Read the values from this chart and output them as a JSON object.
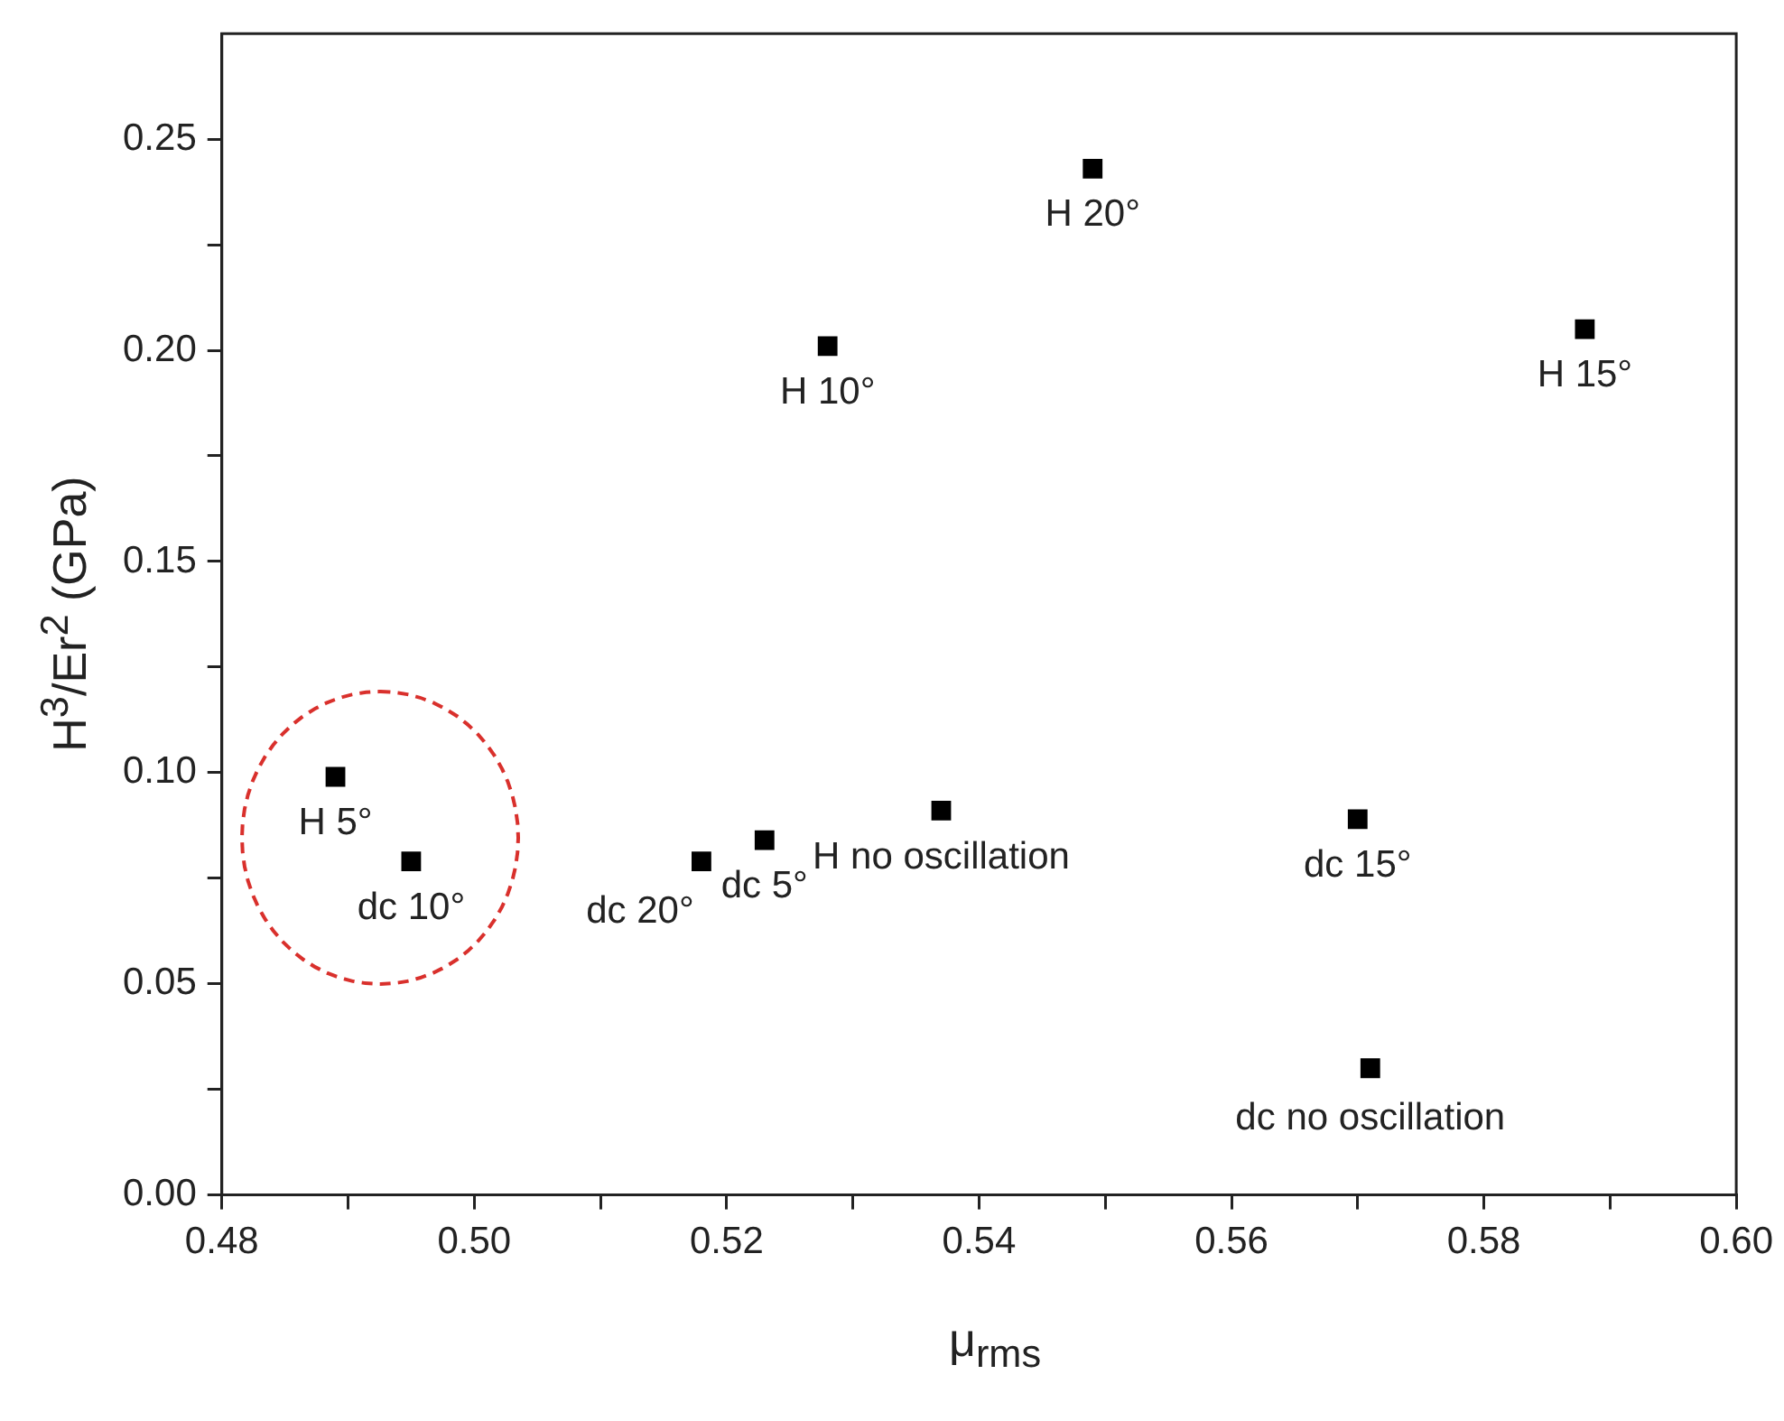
{
  "chart_data": {
    "type": "scatter",
    "xlabel": "μ$_{rms}$",
    "ylabel": "H$^{3}$/Er$^{2}$ (GPa)",
    "x": [
      0.489,
      0.495,
      0.518,
      0.523,
      0.537,
      0.57,
      0.571,
      0.528,
      0.549,
      0.588
    ],
    "series": [
      {
        "color": "#000000",
        "values": [
          0.099,
          0.079,
          0.079,
          0.084,
          0.091,
          0.089,
          0.03,
          0.201,
          0.243,
          0.205
        ]
      }
    ],
    "marker": "square",
    "grid": false,
    "legend": false,
    "xlim": [
      0.48,
      0.6
    ],
    "ylim": [
      0,
      0.275
    ],
    "xticks": [
      0.48,
      {
        "value": 0.49,
        "label": null
      },
      {
        "value": 0.5,
        "label": "0.50"
      },
      {
        "value": 0.51,
        "label": null
      },
      0.52,
      {
        "value": 0.53,
        "label": null
      },
      0.54,
      {
        "value": 0.55,
        "label": null
      },
      0.56,
      {
        "value": 0.57,
        "label": null
      },
      0.58,
      {
        "value": 0.59,
        "label": null
      },
      {
        "value": 0.6,
        "label": "0.60"
      }
    ],
    "yticks": [
      {
        "value": 0,
        "label": "0.00"
      },
      {
        "value": 0.025,
        "label": null
      },
      0.05,
      {
        "value": 0.075,
        "label": null
      },
      {
        "value": 0.1,
        "label": "0.10"
      },
      {
        "value": 0.125,
        "label": null
      },
      0.15,
      {
        "value": 0.175,
        "label": null
      },
      {
        "value": 0.2,
        "label": "0.20"
      },
      {
        "value": 0.225,
        "label": null
      },
      0.25
    ],
    "annotations": [
      {
        "text": "H 5°",
        "x": 0.489,
        "y": 0.099
      },
      {
        "text": "dc 10°",
        "x": 0.495,
        "y": 0.079
      },
      {
        "text": "dc 20°",
        "x": 0.518,
        "y": 0.079
      },
      {
        "text": "dc 5°",
        "x": 0.523,
        "y": 0.084
      },
      {
        "text": "H no oscillation",
        "x": 0.537,
        "y": 0.091
      },
      {
        "text": "dc 15°",
        "x": 0.57,
        "y": 0.089
      },
      {
        "text": "dc no oscillation",
        "x": 0.571,
        "y": 0.03
      },
      {
        "text": "H 10°",
        "x": 0.528,
        "y": 0.201
      },
      {
        "text": "H 20°",
        "x": 0.549,
        "y": 0.243
      },
      {
        "text": "H 15°",
        "x": 0.588,
        "y": 0.205
      }
    ]
  }
}
